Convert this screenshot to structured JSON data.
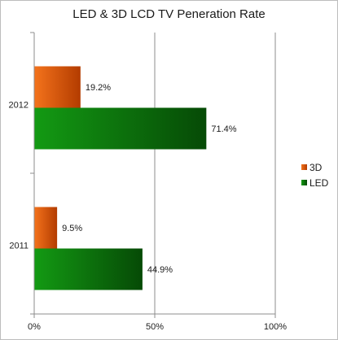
{
  "chart_data": {
    "type": "bar",
    "orientation": "horizontal",
    "title": "LED & 3D LCD TV Peneration Rate",
    "xlabel": "",
    "ylabel": "",
    "categories": [
      "2012",
      "2011"
    ],
    "series": [
      {
        "name": "3D",
        "values": [
          19.2,
          9.5
        ],
        "labels": [
          "19.2%",
          "9.5%"
        ],
        "color": "#e8550a"
      },
      {
        "name": "LED",
        "values": [
          71.4,
          44.9
        ],
        "labels": [
          "71.4%",
          "44.9%"
        ],
        "color": "#0c8a0c"
      }
    ],
    "xlim": [
      0,
      100
    ],
    "xticks": [
      0,
      50,
      100
    ],
    "xtick_labels": [
      "0%",
      "50%",
      "100%"
    ],
    "grid": "vertical",
    "legend": "right"
  }
}
